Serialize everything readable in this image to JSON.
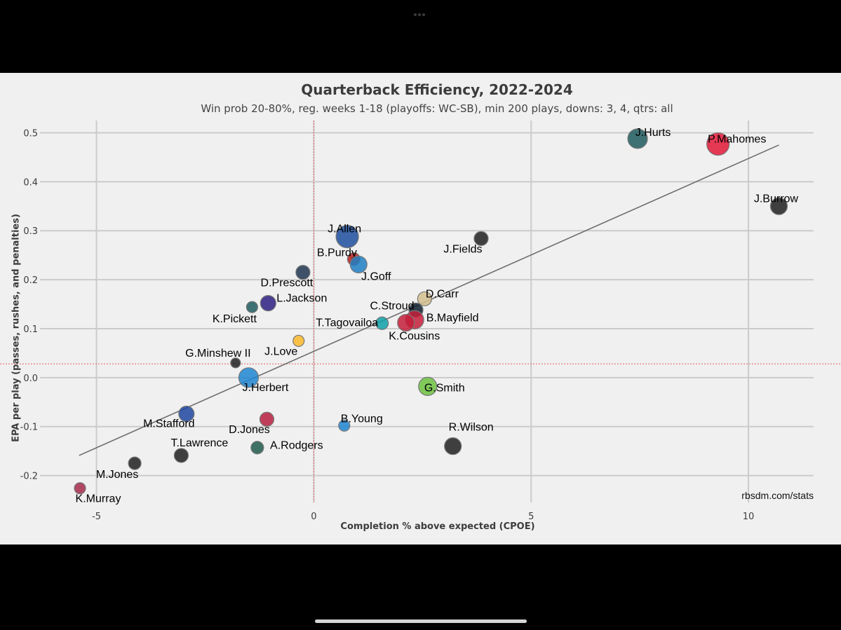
{
  "chart_data": {
    "type": "scatter",
    "title": "Quarterback Efficiency, 2022-2024",
    "subtitle": "Win prob 20-80%, reg. weeks 1-18 (playoffs: WC-SB), min 200 plays, downs: 3, 4, qtrs: all",
    "xlabel": "Completion % above expected (CPOE)",
    "ylabel": "EPA per play (passes, rushes, and penalties)",
    "xlim": [
      -6.3,
      11.5
    ],
    "ylim": [
      -0.255,
      0.525
    ],
    "xticks": [
      -5,
      0,
      5,
      10
    ],
    "xtick_labels": [
      "-5",
      "0",
      "5",
      "10"
    ],
    "yticks": [
      -0.2,
      -0.1,
      0.0,
      0.1,
      0.2,
      0.3,
      0.4,
      0.5
    ],
    "ytick_labels": [
      "-0.2",
      "-0.1",
      "0.0",
      "0.1",
      "0.2",
      "0.3",
      "0.4",
      "0.5"
    ],
    "grid": true,
    "mean_lines": {
      "x": 0.0,
      "y": 0.028,
      "color": "#e8605a"
    },
    "trend_line": {
      "x": [
        -5.4,
        10.7
      ],
      "y": [
        -0.159,
        0.475
      ],
      "color": "#6e6e6e"
    },
    "credit": "rbsdm.com/stats",
    "points": [
      {
        "name": "J.Hurts",
        "x": 7.45,
        "y": 0.488,
        "size": 14,
        "color": "#1f5a5e"
      },
      {
        "name": "P.Mahomes",
        "x": 9.3,
        "y": 0.477,
        "size": 16,
        "color": "#e31837"
      },
      {
        "name": "J.Burrow",
        "x": 10.7,
        "y": 0.35,
        "size": 12,
        "color": "#202020"
      },
      {
        "name": "J.Allen",
        "x": 0.77,
        "y": 0.288,
        "size": 16,
        "color": "#1e4d9e"
      },
      {
        "name": "J.Fields",
        "x": 3.85,
        "y": 0.284,
        "size": 10,
        "color": "#202020"
      },
      {
        "name": "B.Purdy",
        "x": 0.92,
        "y": 0.242,
        "size": 9,
        "color": "#b51e1e"
      },
      {
        "name": "J.Goff",
        "x": 1.03,
        "y": 0.231,
        "size": 12,
        "color": "#1f7fc4"
      },
      {
        "name": "D.Prescott",
        "x": -0.25,
        "y": 0.215,
        "size": 10,
        "color": "#1e3550"
      },
      {
        "name": "D.Carr",
        "x": 2.55,
        "y": 0.161,
        "size": 10,
        "color": "#d4be8d"
      },
      {
        "name": "L.Jackson",
        "x": -1.05,
        "y": 0.152,
        "size": 11,
        "color": "#2b1e80"
      },
      {
        "name": "K.Pickett",
        "x": -1.42,
        "y": 0.144,
        "size": 8,
        "color": "#1f5a5e"
      },
      {
        "name": "C.Stroud",
        "x": 2.35,
        "y": 0.138,
        "size": 10,
        "color": "#0f1f2f"
      },
      {
        "name": "B.Mayfield",
        "x": 2.32,
        "y": 0.118,
        "size": 13,
        "color": "#c41e3a"
      },
      {
        "name": "T.Tagovailoa",
        "x": 1.57,
        "y": 0.111,
        "size": 9,
        "color": "#11a0a8"
      },
      {
        "name": "K.Cousins",
        "x": 2.12,
        "y": 0.112,
        "size": 12,
        "color": "#c41e3a"
      },
      {
        "name": "J.Love",
        "x": -0.35,
        "y": 0.075,
        "size": 8,
        "color": "#fbb82a"
      },
      {
        "name": "G.Minshew II",
        "x": -1.8,
        "y": 0.03,
        "size": 7,
        "color": "#202020"
      },
      {
        "name": "J.Herbert",
        "x": -1.5,
        "y": 0.0,
        "size": 14,
        "color": "#1f86d2"
      },
      {
        "name": "G.Smith",
        "x": 2.62,
        "y": -0.018,
        "size": 13,
        "color": "#6cc23f"
      },
      {
        "name": "M.Stafford",
        "x": -2.93,
        "y": -0.074,
        "size": 11,
        "color": "#1f47a0"
      },
      {
        "name": "D.Jones",
        "x": -1.08,
        "y": -0.085,
        "size": 10,
        "color": "#b62040"
      },
      {
        "name": "B.Young",
        "x": 0.7,
        "y": -0.098,
        "size": 8,
        "color": "#1f86d2"
      },
      {
        "name": "R.Wilson",
        "x": 3.2,
        "y": -0.14,
        "size": 12,
        "color": "#202020"
      },
      {
        "name": "A.Rodgers",
        "x": -1.3,
        "y": -0.143,
        "size": 9,
        "color": "#1f5a4a"
      },
      {
        "name": "T.Lawrence",
        "x": -3.05,
        "y": -0.159,
        "size": 10,
        "color": "#202020"
      },
      {
        "name": "M.Jones",
        "x": -4.12,
        "y": -0.175,
        "size": 9,
        "color": "#202020"
      },
      {
        "name": "K.Murray",
        "x": -5.38,
        "y": -0.226,
        "size": 8,
        "color": "#a52a4a"
      }
    ]
  }
}
